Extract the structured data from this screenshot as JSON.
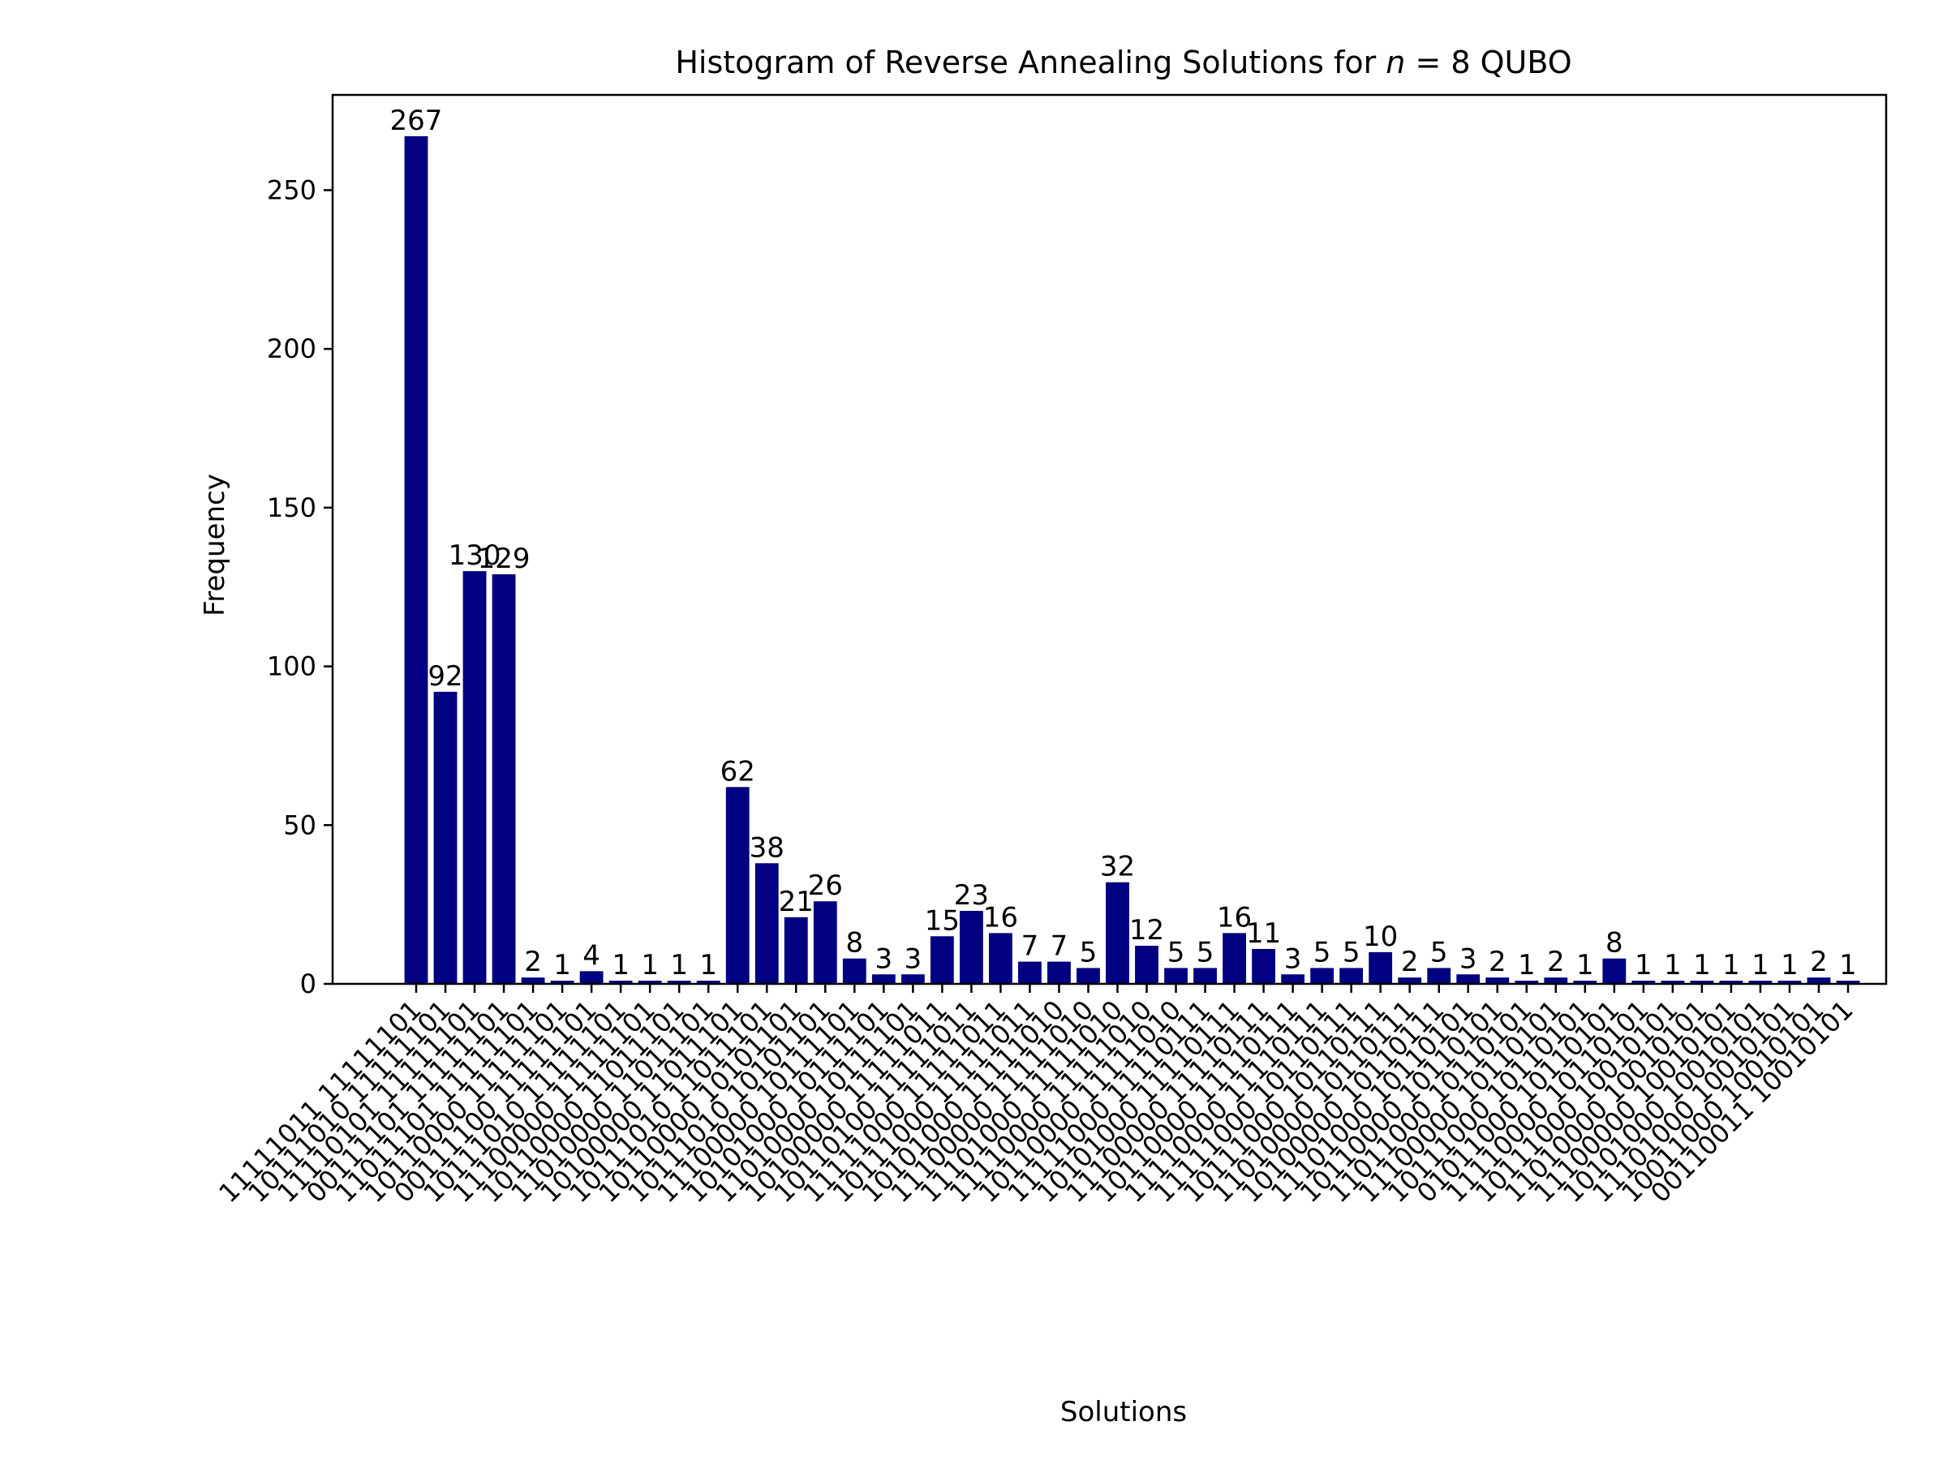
{
  "chart_data": {
    "type": "bar",
    "title_prefix": "Histogram of Reverse Annealing Solutions for ",
    "title_var": "n",
    "title_suffix": " = 8 QUBO",
    "xlabel": "Solutions",
    "ylabel": "Frequency",
    "ylim": [
      0,
      280
    ],
    "yticks": [
      0,
      50,
      100,
      150,
      200,
      250
    ],
    "bar_color": "#000080",
    "categories": [
      "11111011 11111101",
      "10111010 11111101",
      "11110101 11111101",
      "00111101 11111101",
      "11011101 11111101",
      "10110000 11111101",
      "00111100 11111101",
      "10111010 11111101",
      "11100000 11111101",
      "10110000 11011101",
      "11010000 11011101",
      "10100000 11011101",
      "10111010 11011101",
      "10110000 10101101",
      "10111010 10101101",
      "11100000 10111101",
      "10101000 10111101",
      "11010000 10111101",
      "10100000 11111011",
      "10110100 11111011",
      "11111000 11111011",
      "10111000 11111011",
      "10101000 11111010",
      "11100000 11111010",
      "11101000 11111010",
      "11110000 11111010",
      "10110000 11111010",
      "11111000 11110111",
      "10101000 11110111",
      "11100000 11110111",
      "10110000 11110111",
      "11110000 11110111",
      "11111000 10110111",
      "10111000 10110111",
      "11010000 10110111",
      "10100000 10110111",
      "11101000 10110101",
      "10110000 10110101",
      "11011000 10110101",
      "11100000 10110101",
      "10111000 10110101",
      "01011000 10110101",
      "11110000 10110101",
      "10111000 10010101",
      "11010000 10010101",
      "11100000 10010101",
      "10101000 10010101",
      "11101000 10010101",
      "10011000 10010101",
      "00110011 10010101"
    ],
    "values": [
      267,
      92,
      130,
      129,
      2,
      1,
      4,
      1,
      1,
      1,
      1,
      62,
      38,
      21,
      26,
      8,
      3,
      3,
      15,
      23,
      16,
      7,
      7,
      5,
      32,
      12,
      5,
      5,
      16,
      11,
      3,
      5,
      5,
      10,
      2,
      5,
      3,
      2,
      1,
      2,
      1,
      8,
      1,
      1,
      1,
      1,
      1,
      1,
      2,
      1
    ]
  }
}
